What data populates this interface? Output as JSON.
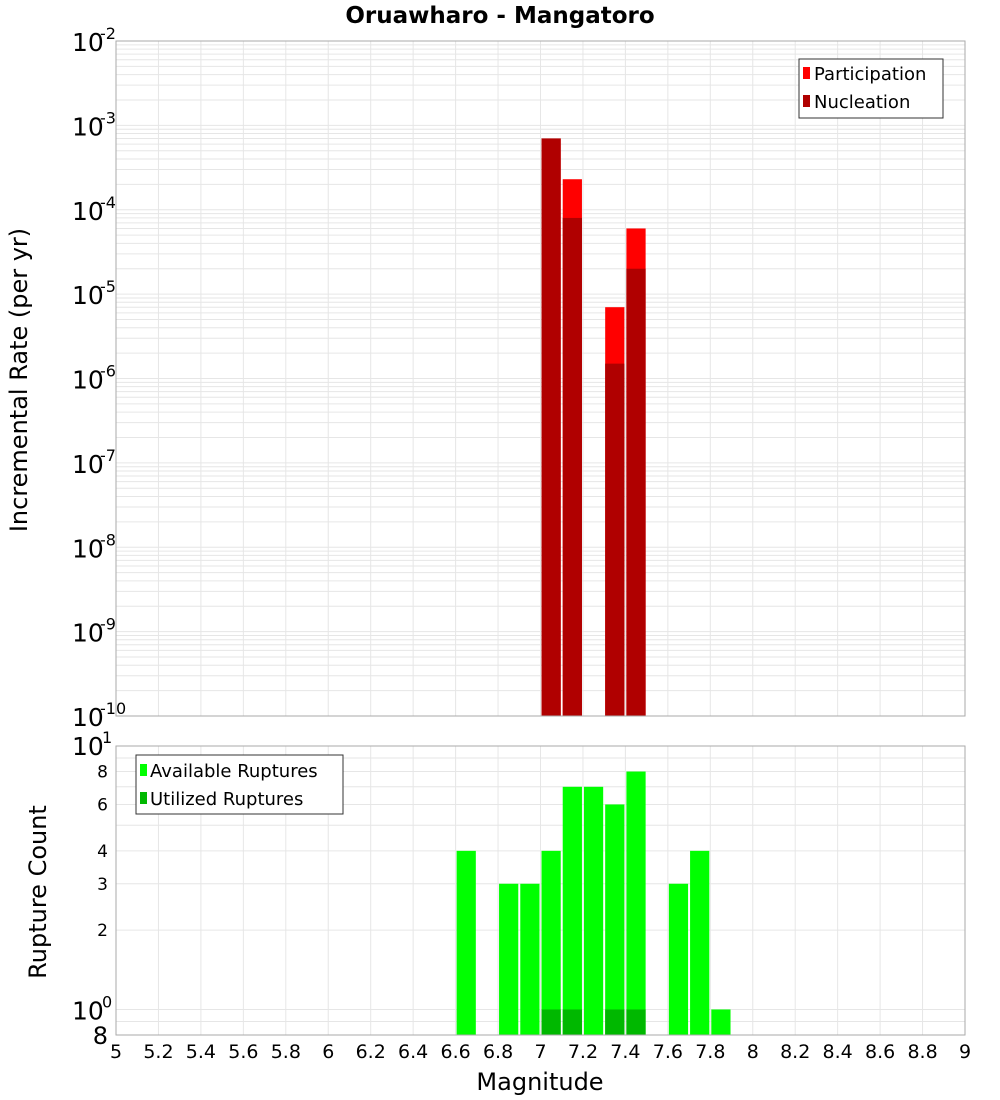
{
  "title": "Oruawharo - Mangatoro",
  "colors": {
    "participation": "#ff0000",
    "nucleation": "#b00000",
    "available": "#00ff00",
    "utilized": "#00b800",
    "grid": "#e6e6e6",
    "frame": "#aaaaaa"
  },
  "chart_data": [
    {
      "type": "bar",
      "title": "Oruawharo - Mangatoro",
      "xlabel": "Magnitude",
      "ylabel": "Incremental Rate (per yr)",
      "yscale": "log",
      "xlim": [
        5,
        9
      ],
      "ylim": [
        1e-10,
        0.01
      ],
      "legend": [
        "Participation",
        "Nucleation"
      ],
      "legend_position": "top-right",
      "y_ticks": [
        {
          "base": "10",
          "exp": "-2"
        },
        {
          "base": "10",
          "exp": "-3"
        },
        {
          "base": "10",
          "exp": "-4"
        },
        {
          "base": "10",
          "exp": "-5"
        },
        {
          "base": "10",
          "exp": "-6"
        },
        {
          "base": "10",
          "exp": "-7"
        },
        {
          "base": "10",
          "exp": "-8"
        },
        {
          "base": "10",
          "exp": "-9"
        },
        {
          "base": "10",
          "exp": "-10"
        }
      ],
      "bin_width": 0.1,
      "x": [
        7.05,
        7.15,
        7.35,
        7.45
      ],
      "series": [
        {
          "name": "Participation",
          "values": [
            0.0007,
            0.00023,
            7e-06,
            6e-05
          ]
        },
        {
          "name": "Nucleation",
          "values": [
            0.0007,
            8e-05,
            1.5e-06,
            2e-05
          ]
        }
      ]
    },
    {
      "type": "bar",
      "xlabel": "Magnitude",
      "ylabel": "Rupture Count",
      "yscale": "log",
      "xlim": [
        5,
        9
      ],
      "ylim": [
        0.8,
        10
      ],
      "legend": [
        "Available Ruptures",
        "Utilized Ruptures"
      ],
      "legend_position": "top-left",
      "y_ticks": [
        {
          "label": "8",
          "value": 8
        },
        {
          "label": "6",
          "value": 6
        },
        {
          "label": "4",
          "value": 4
        },
        {
          "label": "3",
          "value": 3
        },
        {
          "label": "2",
          "value": 2
        }
      ],
      "y_top_label": {
        "base": "10",
        "exp": "1"
      },
      "y_one_label": {
        "base": "10",
        "exp": "0"
      },
      "y_bottom_label": "8",
      "bin_width": 0.1,
      "x": [
        6.65,
        6.85,
        6.95,
        7.05,
        7.15,
        7.25,
        7.35,
        7.45,
        7.65,
        7.75,
        7.85
      ],
      "series": [
        {
          "name": "Available Ruptures",
          "values": [
            4,
            3,
            3,
            4,
            7,
            7,
            6,
            8,
            3,
            4,
            1
          ]
        },
        {
          "name": "Utilized Ruptures",
          "values": [
            0,
            0,
            0,
            1,
            1,
            0,
            1,
            1,
            0,
            0,
            0
          ]
        }
      ]
    }
  ],
  "x_tick_labels": [
    "5",
    "5.2",
    "5.4",
    "5.6",
    "5.8",
    "6",
    "6.2",
    "6.4",
    "6.6",
    "6.8",
    "7",
    "7.2",
    "7.4",
    "7.6",
    "7.8",
    "8",
    "8.2",
    "8.4",
    "8.6",
    "8.8",
    "9"
  ]
}
